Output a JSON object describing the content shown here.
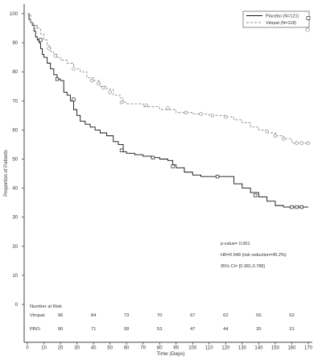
{
  "chart_data": {
    "type": "line",
    "subtype": "kaplan-meier step curve with risk table",
    "title": "",
    "xlabel": "Time (Days)",
    "ylabel": "Proportion of Patients",
    "xlim": [
      0,
      170
    ],
    "ylim": [
      0,
      100
    ],
    "x_ticks": [
      0,
      10,
      20,
      30,
      40,
      50,
      60,
      70,
      80,
      90,
      100,
      110,
      120,
      130,
      140,
      150,
      160,
      170
    ],
    "y_ticks": [
      0,
      10,
      20,
      30,
      40,
      50,
      60,
      70,
      80,
      90,
      100
    ],
    "grid": false,
    "legend_position": "top-right",
    "series": [
      {
        "name": "Placebo (N=121)",
        "color": "#111111",
        "dash": "solid",
        "x": [
          0,
          1,
          2,
          3,
          4,
          5,
          6,
          7,
          8,
          9,
          10,
          12,
          14,
          16,
          18,
          20,
          22,
          24,
          26,
          28,
          30,
          32,
          35,
          38,
          41,
          44,
          48,
          52,
          55,
          58,
          60,
          65,
          70,
          75,
          80,
          85,
          88,
          90,
          95,
          100,
          105,
          110,
          115,
          120,
          125,
          130,
          135,
          140,
          145,
          150,
          155,
          160,
          163,
          166,
          170
        ],
        "y": [
          100,
          98,
          97,
          96,
          94,
          92,
          91,
          90,
          88,
          86,
          85,
          83,
          81,
          79,
          77.5,
          77,
          73,
          72,
          70,
          67,
          65,
          63,
          62,
          61,
          60,
          59,
          58,
          56,
          55,
          52.5,
          52,
          51.5,
          51,
          50.5,
          50,
          49.5,
          48,
          47,
          45.5,
          44.5,
          44,
          44,
          44,
          44,
          41.5,
          40,
          38.5,
          37,
          35.5,
          34,
          33.5,
          33.5,
          33.5,
          33.5,
          33.5
        ],
        "censor_x": [
          8,
          18,
          28,
          57,
          76,
          88,
          115,
          138,
          160,
          163,
          166
        ],
        "censor_y": [
          91,
          77.5,
          70.5,
          53,
          50.5,
          47.5,
          44,
          37.5,
          33.5,
          33.5,
          33.5
        ]
      },
      {
        "name": "Vimpat (N=118)",
        "color": "#8a8a8a",
        "dash": "dashed",
        "x": [
          0,
          2,
          4,
          6,
          8,
          10,
          12,
          14,
          16,
          18,
          20,
          24,
          28,
          32,
          36,
          40,
          44,
          48,
          52,
          56,
          58,
          60,
          70,
          80,
          90,
          100,
          110,
          120,
          125,
          130,
          135,
          140,
          145,
          150,
          155,
          160,
          163,
          166,
          170
        ],
        "y": [
          100,
          97,
          96,
          95,
          93,
          91,
          89,
          87,
          86,
          85,
          84,
          83,
          81,
          80,
          78,
          77,
          75,
          74,
          72,
          71,
          69.5,
          69,
          68,
          67,
          66,
          65.5,
          65,
          64.5,
          63.5,
          62.5,
          61,
          60,
          59,
          58,
          57,
          55.5,
          55.5,
          55.5,
          55.5
        ],
        "censor_x": [
          5,
          13,
          17,
          28,
          39,
          43,
          46,
          50,
          57,
          72,
          85,
          96,
          105,
          112,
          120,
          145,
          150,
          155,
          163,
          166,
          170
        ],
        "censor_y": [
          95.5,
          88,
          85.5,
          81,
          77,
          76,
          74.5,
          73,
          69.5,
          68.5,
          67.5,
          66,
          65.5,
          65,
          64.5,
          59.5,
          58,
          57,
          55.5,
          55.5,
          55.5
        ]
      }
    ],
    "stats_annotation": [
      "p-value= 0.001",
      "HR=0.548 (risk reduction=45.2%)",
      "95% CI= [0.381,0.788]"
    ],
    "risk_table": {
      "title": "Number at Risk",
      "timepoints": [
        20,
        40,
        60,
        80,
        100,
        120,
        140,
        160
      ],
      "rows": [
        {
          "label": "Vimpat:",
          "color": "#888888",
          "values": [
            "96",
            "84",
            "73",
            "70",
            "67",
            "62",
            "56",
            "52"
          ]
        },
        {
          "label": "PBO:",
          "color": "#111111",
          "values": [
            "90",
            "71",
            "58",
            "53",
            "47",
            "44",
            "35",
            "31"
          ]
        }
      ]
    }
  }
}
